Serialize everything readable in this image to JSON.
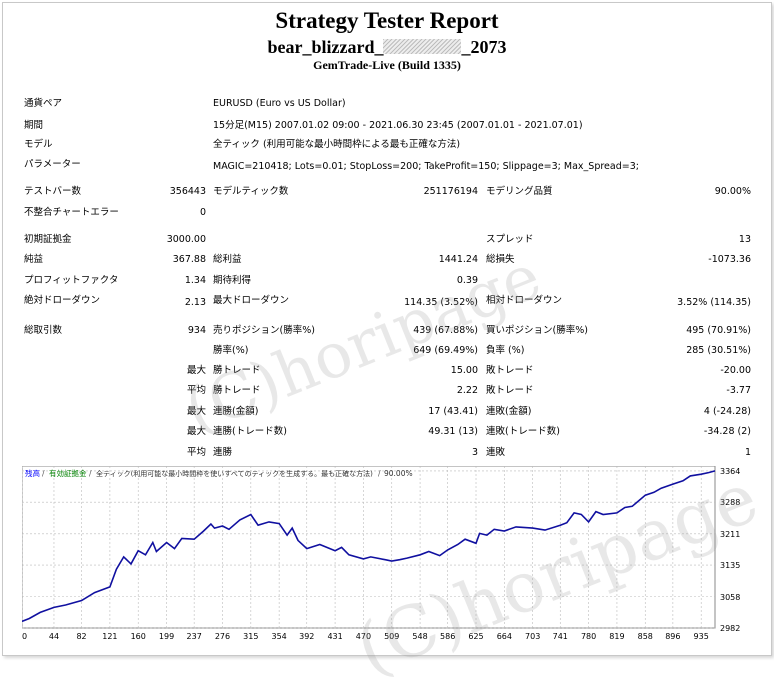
{
  "report": {
    "title": "Strategy Tester Report",
    "ea_prefix": "bear_blizzard_",
    "ea_suffix": "_2073",
    "server": "GemTrade-Live (Build 1335)"
  },
  "info": {
    "pair_label": "通貨ペア",
    "pair_value": "EURUSD (Euro vs US Dollar)",
    "period_label": "期間",
    "period_value": "15分足(M15) 2007.01.02 09:00 - 2021.06.30 23:45 (2007.01.01 - 2021.07.01)",
    "model_label": "モデル",
    "model_value": "全ティック (利用可能な最小時間枠による最も正確な方法)",
    "params_label": "パラメーター",
    "params_value": "MAGIC=210418; Lots=0.01; StopLoss=200; TakeProfit=150; Slippage=3; Max_Spread=3;"
  },
  "stats": {
    "bars_label": "テストバー数",
    "bars_value": "356443",
    "ticks_label": "モデルティック数",
    "ticks_value": "251176194",
    "quality_label": "モデリング品質",
    "quality_value": "90.00%",
    "mismatch_label": "不整合チャートエラー",
    "mismatch_value": "0",
    "deposit_label": "初期証拠金",
    "deposit_value": "3000.00",
    "spread_label": "スプレッド",
    "spread_value": "13",
    "net_label": "純益",
    "net_value": "367.88",
    "gross_profit_label": "総利益",
    "gross_profit_value": "1441.24",
    "gross_loss_label": "総損失",
    "gross_loss_value": "-1073.36",
    "pf_label": "プロフィットファクタ",
    "pf_value": "1.34",
    "payoff_label": "期待利得",
    "payoff_value": "0.39",
    "abs_dd_label": "絶対ドローダウン",
    "abs_dd_value": "2.13",
    "max_dd_label": "最大ドローダウン",
    "max_dd_value": "114.35 (3.52%)",
    "rel_dd_label": "相対ドローダウン",
    "rel_dd_value": "3.52% (114.35)",
    "trades_label": "総取引数",
    "trades_value": "934",
    "short_label": "売りポジション(勝率%)",
    "short_value": "439 (67.88%)",
    "long_label": "買いポジション(勝率%)",
    "long_value": "495 (70.91%)",
    "winrate_label": "勝率(%)",
    "winrate_value": "649 (69.49%)",
    "lossrate_label": "負率 (%)",
    "lossrate_value": "285 (30.51%)",
    "max_word": "最大",
    "avg_word": "平均",
    "win_trade_label": "勝トレード",
    "loss_trade_label": "敗トレード",
    "largest_win_value": "15.00",
    "largest_loss_value": "-20.00",
    "avg_win_value": "2.22",
    "avg_loss_value": "-3.77",
    "consec_win_amt_label": "連勝(金額)",
    "consec_win_amt_value": "17 (43.41)",
    "consec_loss_amt_label": "連敗(金額)",
    "consec_loss_amt_value": "4 (-24.28)",
    "consec_win_cnt_label": "連勝(トレード数)",
    "consec_win_cnt_value": "49.31 (13)",
    "consec_loss_cnt_label": "連敗(トレード数)",
    "consec_loss_cnt_value": "-34.28 (2)",
    "avg_consec_win_label": "連勝",
    "avg_consec_win_value": "3",
    "avg_consec_loss_label": "連敗",
    "avg_consec_loss_value": "1"
  },
  "watermark": "(C)horipage",
  "chart_legend": {
    "balance": "残高",
    "equity": "有効証拠金",
    "model": "全ティック(利用可能な最小時間枠を使いすべてのティックを生成する。最も正確な方法)",
    "quality": "90.00%"
  },
  "colors": {
    "balance": "#1010a0",
    "grid": "#bbbbbb",
    "legend_blue": "#0000ff",
    "legend_green": "#008000"
  },
  "chart_data": {
    "type": "line",
    "title": "",
    "xlabel": "",
    "ylabel": "",
    "x_ticks": [
      0,
      44,
      82,
      121,
      160,
      199,
      237,
      276,
      315,
      354,
      392,
      431,
      470,
      509,
      548,
      586,
      625,
      664,
      703,
      741,
      780,
      819,
      858,
      896,
      935
    ],
    "y_ticks": [
      2982,
      3058,
      3135,
      3211,
      3288,
      3364
    ],
    "xlim": [
      0,
      954
    ],
    "ylim": [
      2982,
      3376
    ],
    "grid": true,
    "legend_position": "top-left",
    "series": [
      {
        "name": "残高",
        "x": [
          0,
          10,
          25,
          44,
          60,
          82,
          100,
          121,
          130,
          140,
          150,
          160,
          170,
          180,
          185,
          199,
          210,
          220,
          237,
          250,
          260,
          265,
          276,
          285,
          300,
          315,
          325,
          340,
          354,
          365,
          372,
          380,
          392,
          410,
          431,
          440,
          450,
          470,
          480,
          500,
          509,
          520,
          530,
          548,
          560,
          575,
          586,
          600,
          610,
          625,
          630,
          640,
          650,
          664,
          680,
          703,
          720,
          741,
          750,
          760,
          770,
          780,
          790,
          800,
          819,
          830,
          840,
          858,
          870,
          880,
          896,
          910,
          920,
          935,
          945,
          954
        ],
        "values": [
          2998,
          3005,
          3020,
          3032,
          3038,
          3049,
          3068,
          3082,
          3125,
          3155,
          3138,
          3170,
          3160,
          3190,
          3168,
          3190,
          3175,
          3200,
          3198,
          3218,
          3235,
          3225,
          3230,
          3222,
          3245,
          3258,
          3232,
          3240,
          3236,
          3208,
          3225,
          3195,
          3175,
          3185,
          3170,
          3178,
          3160,
          3150,
          3155,
          3148,
          3145,
          3148,
          3152,
          3160,
          3168,
          3158,
          3172,
          3185,
          3198,
          3188,
          3212,
          3208,
          3222,
          3218,
          3228,
          3225,
          3220,
          3232,
          3238,
          3262,
          3258,
          3240,
          3265,
          3258,
          3262,
          3275,
          3278,
          3305,
          3312,
          3322,
          3332,
          3340,
          3352,
          3356,
          3360,
          3364
        ]
      }
    ]
  }
}
